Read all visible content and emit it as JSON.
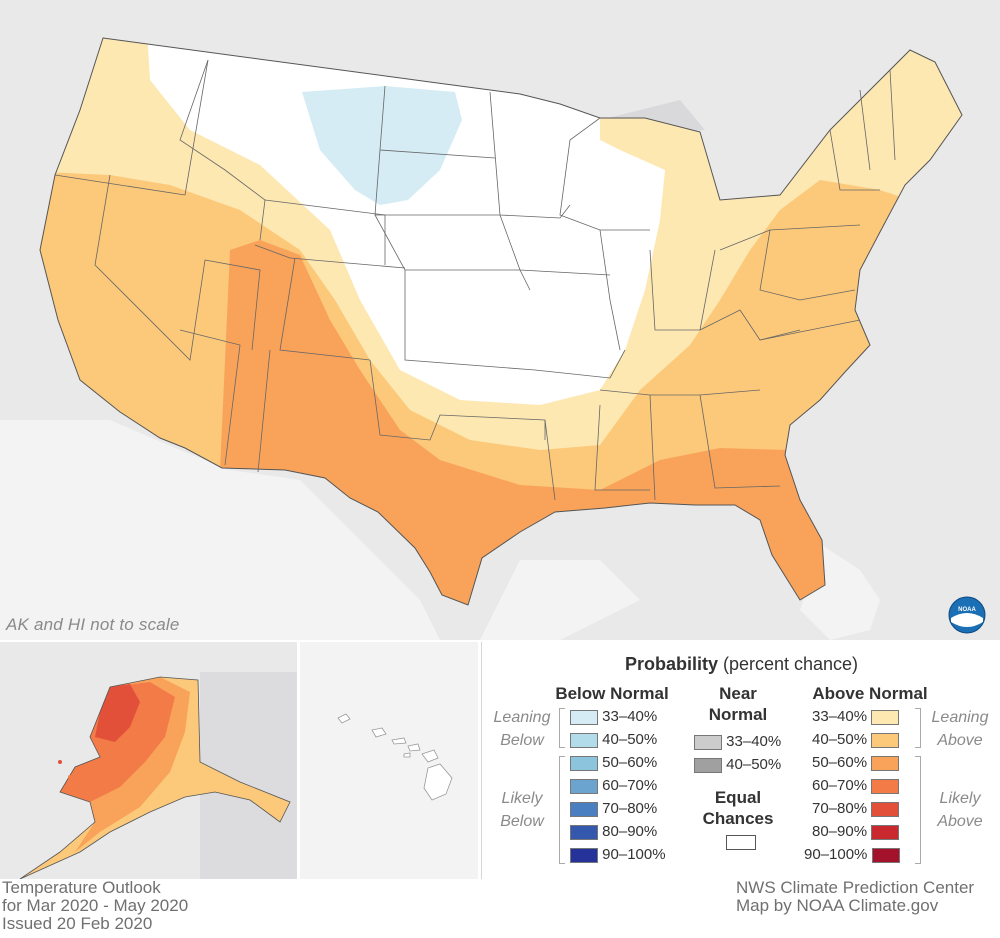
{
  "map": {
    "scale_note": "AK and HI not to scale",
    "logo_icon": "noaa-logo"
  },
  "legend": {
    "title_bold": "Probability",
    "title_rest": "(percent chance)",
    "below_header": "Below Normal",
    "near_header_1": "Near",
    "near_header_2": "Normal",
    "above_header": "Above Normal",
    "equal_1": "Equal",
    "equal_2": "Chances",
    "leaning_below_1": "Leaning",
    "leaning_below_2": "Below",
    "likely_below_1": "Likely",
    "likely_below_2": "Below",
    "leaning_above_1": "Leaning",
    "leaning_above_2": "Above",
    "likely_above_1": "Likely",
    "likely_above_2": "Above",
    "below": [
      {
        "label": "33–40%",
        "color": "#d5ecf5"
      },
      {
        "label": "40–50%",
        "color": "#b3dceb"
      },
      {
        "label": "50–60%",
        "color": "#8cc4de"
      },
      {
        "label": "60–70%",
        "color": "#6aa4cf"
      },
      {
        "label": "70–80%",
        "color": "#4a80c1"
      },
      {
        "label": "80–90%",
        "color": "#3358ad"
      },
      {
        "label": "90–100%",
        "color": "#24329a"
      }
    ],
    "near": [
      {
        "label": "33–40%",
        "color": "#cccccc"
      },
      {
        "label": "40–50%",
        "color": "#a0a0a0"
      }
    ],
    "equal_color": "#ffffff",
    "above": [
      {
        "label": "33–40%",
        "color": "#fde8b2"
      },
      {
        "label": "40–50%",
        "color": "#fcc97a"
      },
      {
        "label": "50–60%",
        "color": "#f9a35a"
      },
      {
        "label": "60–70%",
        "color": "#f27b48"
      },
      {
        "label": "70–80%",
        "color": "#e2503a"
      },
      {
        "label": "80–90%",
        "color": "#c8282e"
      },
      {
        "label": "90–100%",
        "color": "#a3112a"
      }
    ]
  },
  "footer": {
    "left_1": "Temperature Outlook",
    "left_2": "for Mar 2020 - May 2020",
    "left_3": "Issued 20 Feb 2020",
    "right_1": "NWS Climate Prediction Center",
    "right_2": "Map by NOAA Climate.gov"
  }
}
